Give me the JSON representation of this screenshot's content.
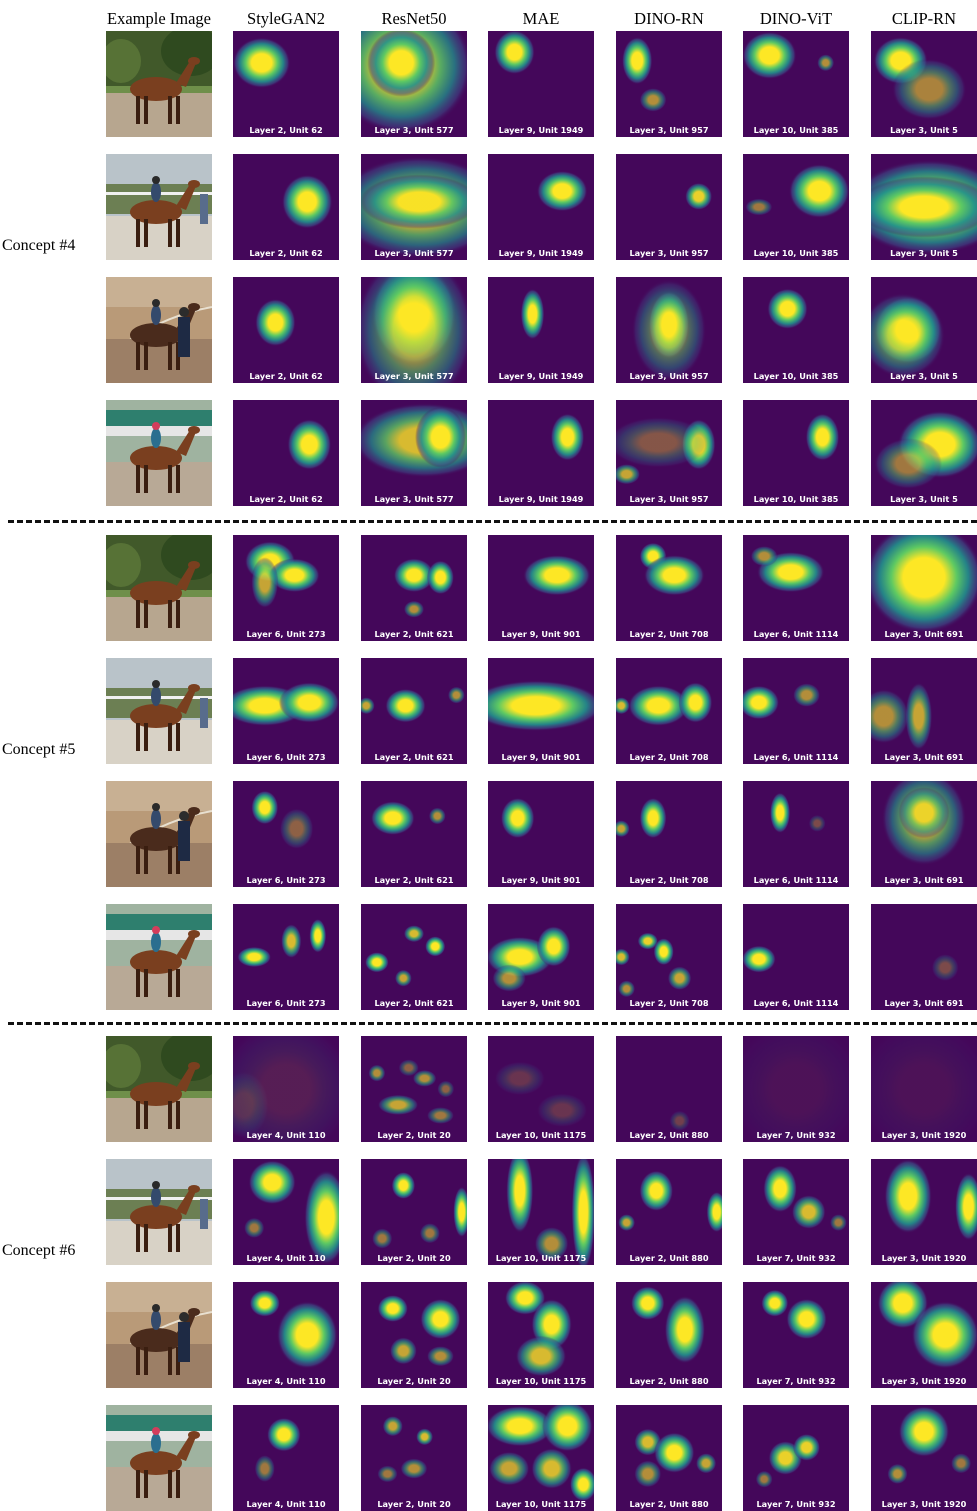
{
  "figure": {
    "example_column_header": "Example Image",
    "models": [
      "StyleGAN2",
      "ResNet50",
      "MAE",
      "DINO-RN",
      "DINO-ViT",
      "CLIP-RN"
    ],
    "photos": [
      {
        "name": "horse-standing-photo",
        "scene": "standing"
      },
      {
        "name": "horse-rider-walking-photo",
        "scene": "rider"
      },
      {
        "name": "horse-handler-track-photo",
        "scene": "handler"
      },
      {
        "name": "racehorse-jockey-photo",
        "scene": "racing"
      }
    ],
    "concepts": [
      {
        "label": "Concept #4",
        "units": [
          "Layer 2, Unit 62",
          "Layer 3, Unit 577",
          "Layer 9, Unit 1949",
          "Layer 3, Unit 957",
          "Layer 10, Unit 385",
          "Layer 3, Unit 5"
        ]
      },
      {
        "label": "Concept #5",
        "units": [
          "Layer 6, Unit 273",
          "Layer 2, Unit 621",
          "Layer 9, Unit 901",
          "Layer 2, Unit 708",
          "Layer 6, Unit 1114",
          "Layer 3, Unit 691"
        ]
      },
      {
        "label": "Concept #6",
        "units": [
          "Layer 4, Unit 110",
          "Layer 2, Unit 20",
          "Layer 10, Unit 1175",
          "Layer 2, Unit 880",
          "Layer 7, Unit 932",
          "Layer 3, Unit 1920"
        ]
      }
    ],
    "colors": {
      "heatmap_background": "#440154",
      "heatmap_mid": "#21918c",
      "heatmap_high": "#fde725",
      "divider": "#111111"
    }
  }
}
